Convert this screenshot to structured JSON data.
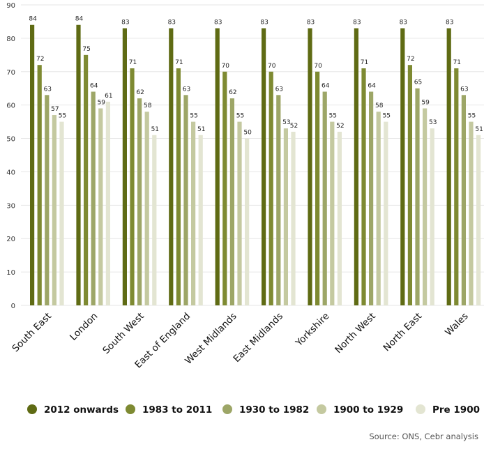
{
  "chart_data": {
    "type": "bar",
    "categories": [
      "South East",
      "London",
      "South West",
      "East of England",
      "West Midlands",
      "East Midlands",
      "Yorkshire",
      "North West",
      "North East",
      "Wales"
    ],
    "series": [
      {
        "name": "2012 onwards",
        "color": "#5f6b14",
        "values": [
          84,
          84,
          83,
          83,
          83,
          83,
          83,
          83,
          83,
          83
        ]
      },
      {
        "name": "1983 to 2011",
        "color": "#7e8a32",
        "values": [
          72,
          75,
          71,
          71,
          70,
          70,
          70,
          71,
          72,
          71
        ]
      },
      {
        "name": "1930 to 1982",
        "color": "#9da667",
        "values": [
          63,
          64,
          62,
          63,
          62,
          63,
          64,
          64,
          65,
          63
        ]
      },
      {
        "name": "1900 to 1929",
        "color": "#c4c9a0",
        "values": [
          57,
          59,
          58,
          55,
          55,
          53,
          55,
          58,
          59,
          55
        ]
      },
      {
        "name": "Pre 1900",
        "color": "#e3e5d2",
        "values": [
          55,
          61,
          51,
          51,
          50,
          52,
          52,
          55,
          53,
          51
        ]
      }
    ],
    "ylim": [
      0,
      90
    ],
    "yticks": [
      0,
      10,
      20,
      30,
      40,
      50,
      60,
      70,
      80,
      90
    ],
    "grid": true,
    "legend_position": "bottom",
    "source": "Source: ONS, Cebr analysis"
  }
}
